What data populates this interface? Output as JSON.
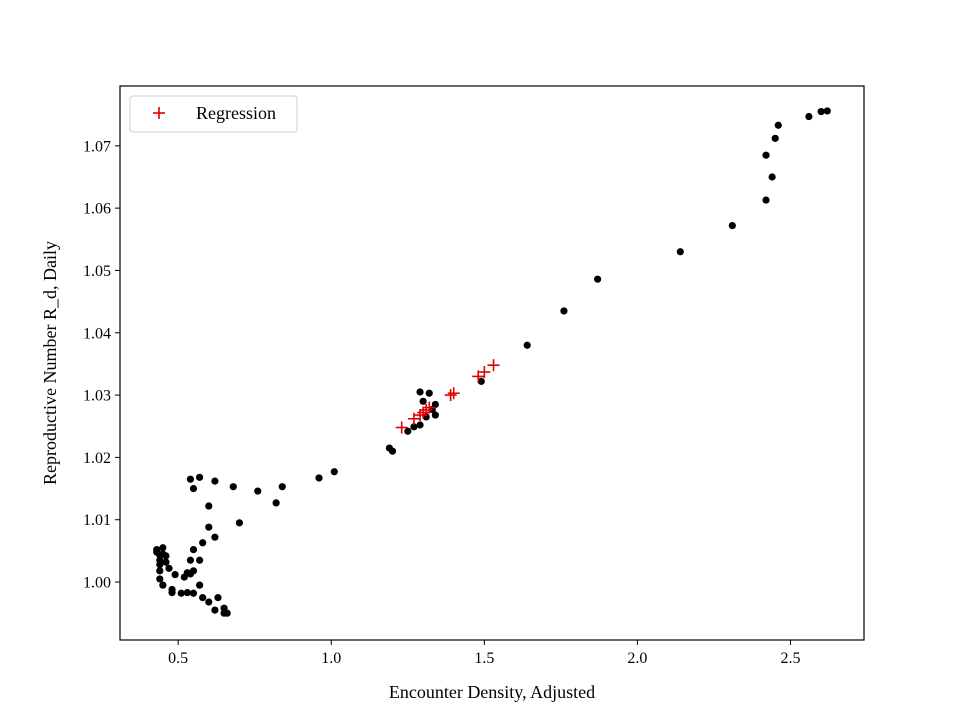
{
  "chart_data": {
    "type": "scatter",
    "title": "",
    "xlabel": "Encounter Density, Adjusted",
    "ylabel": "Reproductive Number R_d, Daily",
    "xlim": [
      0.31,
      2.74
    ],
    "ylim": [
      0.9907,
      1.0796
    ],
    "x_ticks": [
      0.5,
      1.0,
      1.5,
      2.0,
      2.5
    ],
    "x_tick_labels": [
      "0.5",
      "1.0",
      "1.5",
      "2.0",
      "2.5"
    ],
    "y_ticks": [
      1.0,
      1.01,
      1.02,
      1.03,
      1.04,
      1.05,
      1.06,
      1.07
    ],
    "y_tick_labels": [
      "1.00",
      "1.01",
      "1.02",
      "1.03",
      "1.04",
      "1.05",
      "1.06",
      "1.07"
    ],
    "grid": false,
    "legend": {
      "position": "top-left",
      "entries": [
        "Regression"
      ]
    },
    "colors": {
      "data": "#000000",
      "regression": "#e00000"
    },
    "series": [
      {
        "marker": "dot",
        "points": [
          [
            0.43,
            1.0052
          ],
          [
            0.44,
            1.0043
          ],
          [
            0.44,
            1.0035
          ],
          [
            0.45,
            1.0045
          ],
          [
            0.45,
            1.0055
          ],
          [
            0.43,
            1.0048
          ],
          [
            0.44,
            1.0028
          ],
          [
            0.44,
            1.0005
          ],
          [
            0.45,
            0.9995
          ],
          [
            0.44,
            1.0018
          ],
          [
            0.46,
            1.0032
          ],
          [
            0.46,
            1.0042
          ],
          [
            0.47,
            1.0022
          ],
          [
            0.48,
            0.9988
          ],
          [
            0.48,
            0.9983
          ],
          [
            0.49,
            1.0012
          ],
          [
            0.51,
            0.9982
          ],
          [
            0.52,
            1.0008
          ],
          [
            0.53,
            1.0015
          ],
          [
            0.53,
            0.9983
          ],
          [
            0.54,
            1.0013
          ],
          [
            0.54,
            1.0035
          ],
          [
            0.55,
            1.0018
          ],
          [
            0.55,
            0.9982
          ],
          [
            0.55,
            1.0052
          ],
          [
            0.57,
            0.9995
          ],
          [
            0.57,
            1.0035
          ],
          [
            0.58,
            0.9975
          ],
          [
            0.58,
            1.0063
          ],
          [
            0.6,
            1.0088
          ],
          [
            0.6,
            1.0122
          ],
          [
            0.6,
            0.9968
          ],
          [
            0.62,
            1.0072
          ],
          [
            0.62,
            0.9955
          ],
          [
            0.63,
            0.9975
          ],
          [
            0.65,
            0.9958
          ],
          [
            0.65,
            0.995
          ],
          [
            0.66,
            0.995
          ],
          [
            0.54,
            1.0165
          ],
          [
            0.55,
            1.015
          ],
          [
            0.57,
            1.0168
          ],
          [
            0.62,
            1.0162
          ],
          [
            0.68,
            1.0153
          ],
          [
            0.7,
            1.0095
          ],
          [
            0.76,
            1.0146
          ],
          [
            0.82,
            1.0127
          ],
          [
            0.84,
            1.0153
          ],
          [
            0.96,
            1.0167
          ],
          [
            1.01,
            1.0177
          ],
          [
            1.19,
            1.0215
          ],
          [
            1.2,
            1.021
          ],
          [
            1.25,
            1.0242
          ],
          [
            1.27,
            1.0249
          ],
          [
            1.29,
            1.0252
          ],
          [
            1.29,
            1.0305
          ],
          [
            1.3,
            1.029
          ],
          [
            1.31,
            1.0265
          ],
          [
            1.32,
            1.0303
          ],
          [
            1.33,
            1.0277
          ],
          [
            1.34,
            1.0268
          ],
          [
            1.34,
            1.0285
          ],
          [
            1.49,
            1.0322
          ],
          [
            1.64,
            1.038
          ],
          [
            1.76,
            1.0435
          ],
          [
            1.87,
            1.0486
          ],
          [
            2.14,
            1.053
          ],
          [
            2.31,
            1.0572
          ],
          [
            2.42,
            1.0613
          ],
          [
            2.42,
            1.0685
          ],
          [
            2.44,
            1.065
          ],
          [
            2.45,
            1.0712
          ],
          [
            2.46,
            1.0733
          ],
          [
            2.56,
            1.0747
          ],
          [
            2.6,
            1.0755
          ],
          [
            2.62,
            1.0756
          ]
        ]
      },
      {
        "name": "Regression",
        "marker": "plus",
        "points": [
          [
            1.23,
            1.0248
          ],
          [
            1.27,
            1.0262
          ],
          [
            1.29,
            1.0268
          ],
          [
            1.3,
            1.0272
          ],
          [
            1.31,
            1.0276
          ],
          [
            1.32,
            1.028
          ],
          [
            1.39,
            1.03
          ],
          [
            1.4,
            1.0303
          ],
          [
            1.48,
            1.033
          ],
          [
            1.5,
            1.0337
          ],
          [
            1.53,
            1.0348
          ]
        ]
      }
    ]
  }
}
